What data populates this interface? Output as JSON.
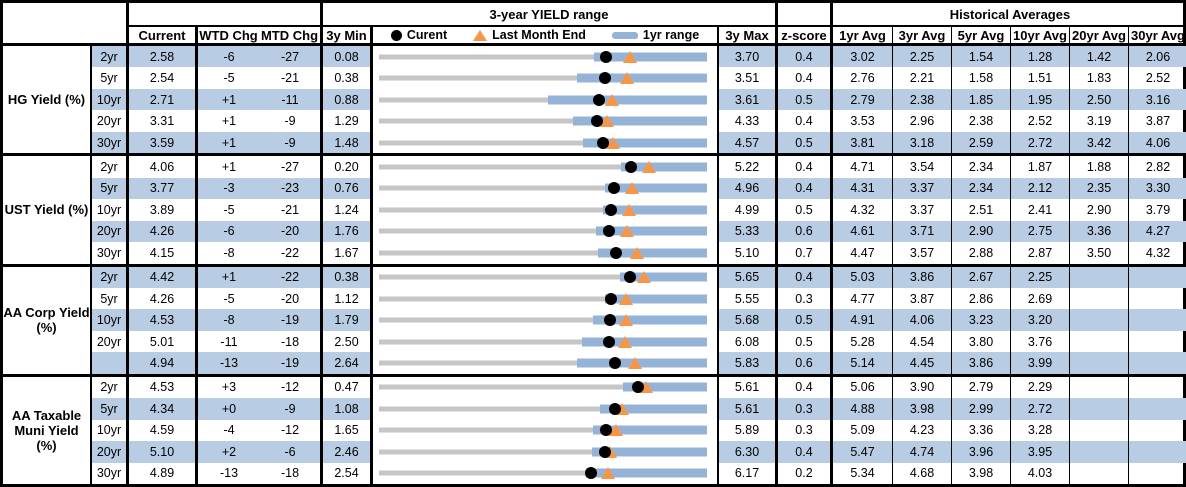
{
  "header": {
    "range_title": "3-year YIELD range",
    "historical_title": "Historical Averages",
    "current": "Current",
    "wtd_chg": "WTD Chg",
    "mtd_chg": "MTD Chg",
    "min_3y": "3y Min",
    "max_3y": "3y Max",
    "z_score": "z-score",
    "avg_cols": [
      "1yr Avg",
      "3yr Avg",
      "5yr Avg",
      "10yr Avg",
      "20yr Avg",
      "30yr Avg"
    ],
    "legend": {
      "current": "Curent",
      "last_month_end": "Last Month End",
      "range_1yr": "1yr range"
    }
  },
  "colors": {
    "row_shade": "#b8cce4",
    "bar_blue": "#95b3d7",
    "track_gray": "#c6c6c6",
    "marker_orange": "#f79646",
    "marker_black": "#000000"
  },
  "chart_data": {
    "type": "table",
    "title": "3-year YIELD range",
    "legend_entries": [
      "Curent",
      "Last Month End",
      "1yr range"
    ],
    "groups": [
      {
        "label_lines": [
          "HG Yield (%)"
        ],
        "rows": [
          {
            "tenor": "2yr",
            "current": "2.58",
            "wtd_chg": "-6",
            "mtd_chg": "-27",
            "min_3y": "0.08",
            "max_3y": "3.70",
            "z_score": "0.4",
            "avgs": [
              "3.02",
              "2.25",
              "1.54",
              "1.28",
              "1.42",
              "2.06"
            ],
            "range_1yr": {
              "low": 2.45,
              "high": 3.7
            },
            "last_month_end": 2.85
          },
          {
            "tenor": "5yr",
            "current": "2.54",
            "wtd_chg": "-5",
            "mtd_chg": "-21",
            "min_3y": "0.38",
            "max_3y": "3.51",
            "z_score": "0.4",
            "avgs": [
              "2.76",
              "2.21",
              "1.58",
              "1.51",
              "1.83",
              "2.52"
            ],
            "range_1yr": {
              "low": 2.27,
              "high": 3.51
            },
            "last_month_end": 2.75
          },
          {
            "tenor": "10yr",
            "current": "2.71",
            "wtd_chg": "+1",
            "mtd_chg": "-11",
            "min_3y": "0.88",
            "max_3y": "3.61",
            "z_score": "0.5",
            "avgs": [
              "2.79",
              "2.38",
              "1.85",
              "1.95",
              "2.50",
              "3.16"
            ],
            "range_1yr": {
              "low": 2.29,
              "high": 3.61
            },
            "last_month_end": 2.82
          },
          {
            "tenor": "20yr",
            "current": "3.31",
            "wtd_chg": "+1",
            "mtd_chg": "-9",
            "min_3y": "1.29",
            "max_3y": "4.33",
            "z_score": "0.4",
            "avgs": [
              "3.53",
              "2.96",
              "2.38",
              "2.52",
              "3.19",
              "3.87"
            ],
            "range_1yr": {
              "low": 3.09,
              "high": 4.33
            },
            "last_month_end": 3.4
          },
          {
            "tenor": "30yr",
            "current": "3.59",
            "wtd_chg": "+1",
            "mtd_chg": "-9",
            "min_3y": "1.48",
            "max_3y": "4.57",
            "z_score": "0.5",
            "avgs": [
              "3.81",
              "3.18",
              "2.59",
              "2.72",
              "3.42",
              "4.06"
            ],
            "range_1yr": {
              "low": 3.4,
              "high": 4.57
            },
            "last_month_end": 3.68
          }
        ]
      },
      {
        "label_lines": [
          "UST Yield (%)"
        ],
        "rows": [
          {
            "tenor": "2yr",
            "current": "4.06",
            "wtd_chg": "+1",
            "mtd_chg": "-27",
            "min_3y": "0.20",
            "max_3y": "5.22",
            "z_score": "0.4",
            "avgs": [
              "4.71",
              "3.54",
              "2.34",
              "1.87",
              "1.88",
              "2.82"
            ],
            "range_1yr": {
              "low": 3.91,
              "high": 5.22
            },
            "last_month_end": 4.33
          },
          {
            "tenor": "5yr",
            "current": "3.77",
            "wtd_chg": "-3",
            "mtd_chg": "-23",
            "min_3y": "0.76",
            "max_3y": "4.96",
            "z_score": "0.4",
            "avgs": [
              "4.31",
              "3.37",
              "2.34",
              "2.12",
              "2.35",
              "3.30"
            ],
            "range_1yr": {
              "low": 3.65,
              "high": 4.96
            },
            "last_month_end": 4.0
          },
          {
            "tenor": "10yr",
            "current": "3.89",
            "wtd_chg": "-5",
            "mtd_chg": "-21",
            "min_3y": "1.24",
            "max_3y": "4.99",
            "z_score": "0.5",
            "avgs": [
              "4.32",
              "3.37",
              "2.51",
              "2.41",
              "2.90",
              "3.79"
            ],
            "range_1yr": {
              "low": 3.8,
              "high": 4.99
            },
            "last_month_end": 4.1
          },
          {
            "tenor": "20yr",
            "current": "4.26",
            "wtd_chg": "-6",
            "mtd_chg": "-20",
            "min_3y": "1.76",
            "max_3y": "5.33",
            "z_score": "0.6",
            "avgs": [
              "4.61",
              "3.71",
              "2.90",
              "2.75",
              "3.36",
              "4.27"
            ],
            "range_1yr": {
              "low": 4.12,
              "high": 5.33
            },
            "last_month_end": 4.46
          },
          {
            "tenor": "30yr",
            "current": "4.15",
            "wtd_chg": "-8",
            "mtd_chg": "-22",
            "min_3y": "1.67",
            "max_3y": "5.10",
            "z_score": "0.7",
            "avgs": [
              "4.47",
              "3.57",
              "2.88",
              "2.87",
              "3.50",
              "4.32"
            ],
            "range_1yr": {
              "low": 3.96,
              "high": 5.1
            },
            "last_month_end": 4.37
          }
        ]
      },
      {
        "label_lines": [
          "AA Corp Yield",
          "(%)"
        ],
        "rows": [
          {
            "tenor": "2yr",
            "current": "4.42",
            "wtd_chg": "+1",
            "mtd_chg": "-22",
            "min_3y": "0.38",
            "max_3y": "5.65",
            "z_score": "0.4",
            "avgs": [
              "5.03",
              "3.86",
              "2.67",
              "2.25",
              "",
              ""
            ],
            "range_1yr": {
              "low": 4.26,
              "high": 5.65
            },
            "last_month_end": 4.64
          },
          {
            "tenor": "5yr",
            "current": "4.26",
            "wtd_chg": "-5",
            "mtd_chg": "-20",
            "min_3y": "1.12",
            "max_3y": "5.55",
            "z_score": "0.3",
            "avgs": [
              "4.77",
              "3.87",
              "2.86",
              "2.69",
              "",
              ""
            ],
            "range_1yr": {
              "low": 4.17,
              "high": 5.55
            },
            "last_month_end": 4.46
          },
          {
            "tenor": "10yr",
            "current": "4.53",
            "wtd_chg": "-8",
            "mtd_chg": "-19",
            "min_3y": "1.79",
            "max_3y": "5.68",
            "z_score": "0.5",
            "avgs": [
              "4.91",
              "4.06",
              "3.23",
              "3.20",
              "",
              ""
            ],
            "range_1yr": {
              "low": 4.33,
              "high": 5.68
            },
            "last_month_end": 4.72
          },
          {
            "tenor": "20yr",
            "current": "5.01",
            "wtd_chg": "-11",
            "mtd_chg": "-18",
            "min_3y": "2.50",
            "max_3y": "6.08",
            "z_score": "0.5",
            "avgs": [
              "5.28",
              "4.54",
              "3.80",
              "3.76",
              "",
              ""
            ],
            "range_1yr": {
              "low": 4.72,
              "high": 6.08
            },
            "last_month_end": 5.19
          },
          {
            "tenor": "",
            "current": "4.94",
            "wtd_chg": "-13",
            "mtd_chg": "-19",
            "min_3y": "2.64",
            "max_3y": "5.83",
            "z_score": "0.6",
            "avgs": [
              "5.14",
              "4.45",
              "3.86",
              "3.99",
              "",
              ""
            ],
            "range_1yr": {
              "low": 4.57,
              "high": 5.83
            },
            "last_month_end": 5.13
          }
        ]
      },
      {
        "label_lines": [
          "AA Taxable",
          "Muni Yield",
          "(%)"
        ],
        "rows": [
          {
            "tenor": "2yr",
            "current": "4.53",
            "wtd_chg": "+3",
            "mtd_chg": "-12",
            "min_3y": "0.47",
            "max_3y": "5.61",
            "z_score": "0.4",
            "avgs": [
              "5.06",
              "3.90",
              "2.79",
              "2.29",
              "",
              ""
            ],
            "range_1yr": {
              "low": 4.29,
              "high": 5.61
            },
            "last_month_end": 4.65
          },
          {
            "tenor": "5yr",
            "current": "4.34",
            "wtd_chg": "+0",
            "mtd_chg": "-9",
            "min_3y": "1.08",
            "max_3y": "5.61",
            "z_score": "0.3",
            "avgs": [
              "4.88",
              "3.98",
              "2.99",
              "2.72",
              "",
              ""
            ],
            "range_1yr": {
              "low": 4.13,
              "high": 5.61
            },
            "last_month_end": 4.43
          },
          {
            "tenor": "10yr",
            "current": "4.59",
            "wtd_chg": "-4",
            "mtd_chg": "-12",
            "min_3y": "1.65",
            "max_3y": "5.89",
            "z_score": "0.3",
            "avgs": [
              "5.09",
              "4.23",
              "3.36",
              "3.28",
              "",
              ""
            ],
            "range_1yr": {
              "low": 4.41,
              "high": 5.89
            },
            "last_month_end": 4.71
          },
          {
            "tenor": "20yr",
            "current": "5.10",
            "wtd_chg": "+2",
            "mtd_chg": "-6",
            "min_3y": "2.46",
            "max_3y": "6.30",
            "z_score": "0.4",
            "avgs": [
              "5.47",
              "4.74",
              "3.96",
              "3.95",
              "",
              ""
            ],
            "range_1yr": {
              "low": 4.95,
              "high": 6.3
            },
            "last_month_end": 5.16
          },
          {
            "tenor": "30yr",
            "current": "4.89",
            "wtd_chg": "-13",
            "mtd_chg": "-18",
            "min_3y": "2.54",
            "max_3y": "6.17",
            "z_score": "0.2",
            "avgs": [
              "5.34",
              "4.68",
              "3.98",
              "4.03",
              "",
              ""
            ],
            "range_1yr": {
              "low": 4.83,
              "high": 6.17
            },
            "last_month_end": 5.07
          }
        ]
      }
    ]
  }
}
